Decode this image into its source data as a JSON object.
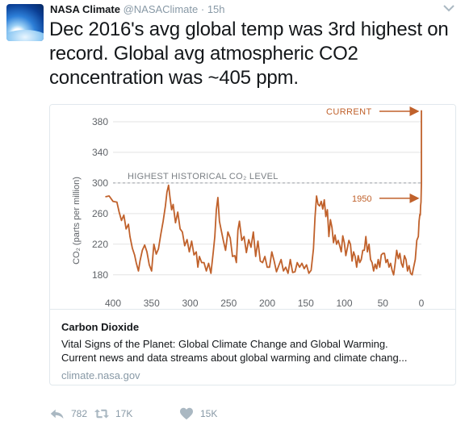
{
  "tweet": {
    "author_name": "NASA Climate",
    "handle": "@NASAClimate",
    "separator": "·",
    "time": "15h",
    "text": "Dec 2016's avg global temp was 3rd highest on record. Global avg atmospheric CO2 concentration was ~405 ppm.",
    "menu_icon": "chevron-down-icon"
  },
  "card": {
    "title": "Carbon Dioxide",
    "description_line1": "Vital Signs of the Planet: Global Climate Change and Global Warming.",
    "description_line2": "Current news and data streams about global warming and climate chang...",
    "domain": "climate.nasa.gov"
  },
  "actions": {
    "reply": {
      "icon": "reply-icon",
      "count": "782"
    },
    "retweet": {
      "icon": "retweet-icon",
      "count": "17K"
    },
    "like": {
      "icon": "heart-icon",
      "count": "15K"
    }
  },
  "chart_data": {
    "type": "line",
    "title": "",
    "ylabel": "CO₂ (parts per million)",
    "xlabel": "",
    "xlim": [
      400,
      0
    ],
    "ylim": [
      165,
      400
    ],
    "y_ticks": [
      "180",
      "220",
      "260",
      "300",
      "340",
      "380"
    ],
    "x_ticks": [
      "400",
      "350",
      "300",
      "250",
      "200",
      "150",
      "100",
      "50",
      "0"
    ],
    "grid": true,
    "line_color": "#c0612b",
    "annotations": {
      "reference_label": "HIGHEST HISTORICAL CO₂ LEVEL",
      "reference_value": 300,
      "current_label": "CURRENT",
      "label_1950": "1950"
    },
    "series": [
      {
        "x": [
          410,
          405,
          400,
          395,
          392,
          389,
          386,
          383,
          380,
          378,
          375,
          372,
          370,
          367,
          365,
          362,
          359,
          356,
          353,
          350,
          347,
          344,
          341,
          338,
          335,
          332,
          330,
          328,
          326,
          324,
          322,
          319,
          316,
          313,
          310,
          307,
          304,
          301,
          298,
          295,
          292,
          290,
          288,
          285,
          282,
          279,
          276,
          273,
          270,
          268,
          266,
          264,
          262,
          260,
          257,
          254,
          251,
          248,
          245,
          242,
          240,
          238,
          236,
          233,
          230,
          227,
          224,
          221,
          218,
          215,
          212,
          209,
          206,
          203,
          200,
          197,
          194,
          191,
          188,
          185,
          182,
          179,
          176,
          173,
          170,
          167,
          164,
          161,
          158,
          155,
          152,
          149,
          146,
          143,
          140,
          138,
          136,
          134,
          132,
          130,
          128,
          126,
          124,
          122,
          120,
          118,
          116,
          114,
          112,
          110,
          108,
          106,
          104,
          102,
          100,
          98,
          96,
          94,
          92,
          90,
          88,
          86,
          84,
          82,
          80,
          78,
          76,
          74,
          72,
          70,
          68,
          66,
          64,
          62,
          60,
          58,
          56,
          54,
          52,
          50,
          48,
          46,
          44,
          42,
          40,
          38,
          36,
          34,
          32,
          30,
          28,
          26,
          24,
          22,
          20,
          18,
          16,
          14,
          12,
          10,
          8,
          6,
          4,
          3,
          2,
          1.5,
          1,
          0.5,
          0
        ],
        "y": [
          282,
          283,
          276,
          275,
          262,
          251,
          258,
          240,
          246,
          230,
          215,
          206,
          196,
          185,
          198,
          212,
          219,
          210,
          193,
          185,
          220,
          207,
          214,
          233,
          250,
          270,
          288,
          297,
          280,
          265,
          272,
          248,
          262,
          240,
          236,
          218,
          226,
          210,
          224,
          206,
          210,
          190,
          204,
          196,
          196,
          185,
          195,
          182,
          210,
          230,
          265,
          281,
          250,
          240,
          225,
          212,
          236,
          228,
          204,
          205,
          196,
          238,
          250,
          225,
          230,
          209,
          226,
          216,
          236,
          204,
          224,
          198,
          196,
          204,
          190,
          190,
          210,
          198,
          184,
          192,
          200,
          185,
          190,
          182,
          200,
          183,
          184,
          196,
          190,
          195,
          188,
          193,
          182,
          186,
          214,
          255,
          283,
          272,
          270,
          276,
          266,
          278,
          256,
          265,
          230,
          252,
          242,
          222,
          232,
          220,
          225,
          218,
          210,
          231,
          222,
          205,
          215,
          225,
          220,
          198,
          210,
          204,
          190,
          205,
          196,
          200,
          212,
          212,
          230,
          210,
          220,
          200,
          196,
          185,
          194,
          188,
          200,
          190,
          206,
          208,
          208,
          196,
          200,
          190,
          195,
          186,
          180,
          195,
          212,
          201,
          208,
          195,
          190,
          205,
          200,
          185,
          192,
          182,
          180,
          190,
          200,
          225,
          230,
          250,
          259,
          258,
          270,
          275,
          300
        ]
      }
    ]
  }
}
